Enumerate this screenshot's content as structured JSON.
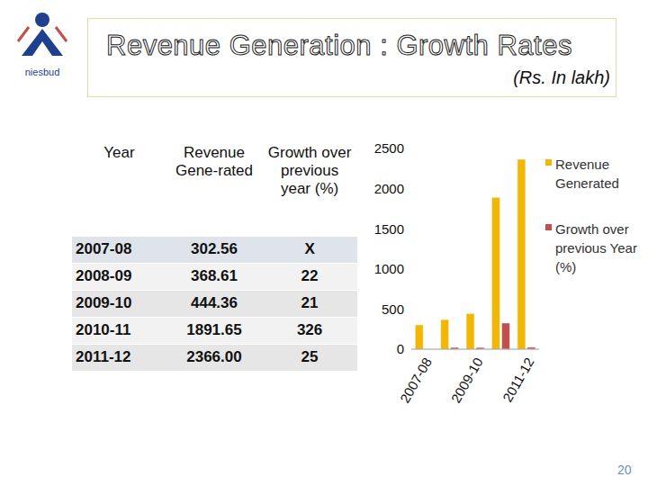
{
  "slide": {
    "title": "Revenue Generation : Growth Rates",
    "subtitle": "(Rs. In lakh)",
    "logo_text": "niesbud",
    "page": "20",
    "table": {
      "header": [
        "Year",
        "Revenue Gene-rated",
        "Growth over previous year (%)"
      ],
      "rows": [
        [
          "2007-08",
          "302.56",
          "X"
        ],
        [
          "2008-09",
          "368.61",
          "22"
        ],
        [
          "2009-10",
          "444.36",
          "21"
        ],
        [
          "2010-11",
          "1891.65",
          "326"
        ],
        [
          "2011-12",
          "2366.00",
          "25"
        ]
      ]
    }
  },
  "chart_data": {
    "type": "bar",
    "categories": [
      "2007-08",
      null,
      "2009-10",
      null,
      "2011-12"
    ],
    "series": [
      {
        "name": "Revenue Generated",
        "color": "#f2b705",
        "values": [
          302.56,
          368.61,
          444.36,
          1891.65,
          2366.0
        ]
      },
      {
        "name": "Growth over previous Year (%)",
        "color": "#c0504d",
        "values": [
          null,
          22,
          21,
          326,
          25
        ]
      }
    ],
    "ylim": [
      0,
      2500
    ],
    "yticks": [
      0,
      500,
      1000,
      1500,
      2000,
      2500
    ],
    "grid": false,
    "legend": "right"
  }
}
